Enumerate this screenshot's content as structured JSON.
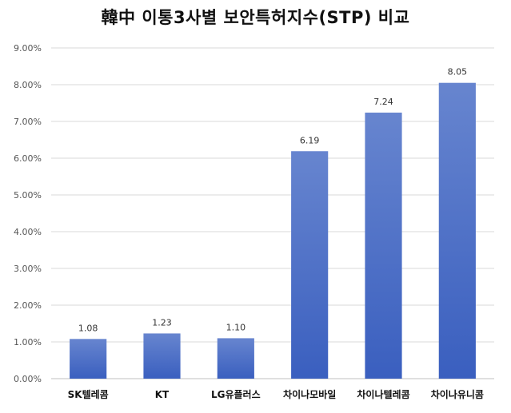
{
  "chart_data": {
    "type": "bar",
    "title": "韓中 이통3사별 보안특허지수(STP) 비교",
    "categories": [
      "SK텔레콤",
      "KT",
      "LG유플러스",
      "차이나모바일",
      "차이나텔레콤",
      "차이나유니콤"
    ],
    "values": [
      1.08,
      1.23,
      1.1,
      6.19,
      7.24,
      8.05
    ],
    "data_labels": [
      "1.08",
      "1.23",
      "1.10",
      "6.19",
      "7.24",
      "8.05"
    ],
    "y_ticks": [
      "0.00%",
      "1.00%",
      "2.00%",
      "3.00%",
      "4.00%",
      "5.00%",
      "6.00%",
      "7.00%",
      "8.00%",
      "9.00%"
    ],
    "ylim": [
      0,
      9
    ],
    "grid": true,
    "legend": "none",
    "bar_color_top": "#6785cf",
    "bar_color_bottom": "#3a5fbf"
  }
}
